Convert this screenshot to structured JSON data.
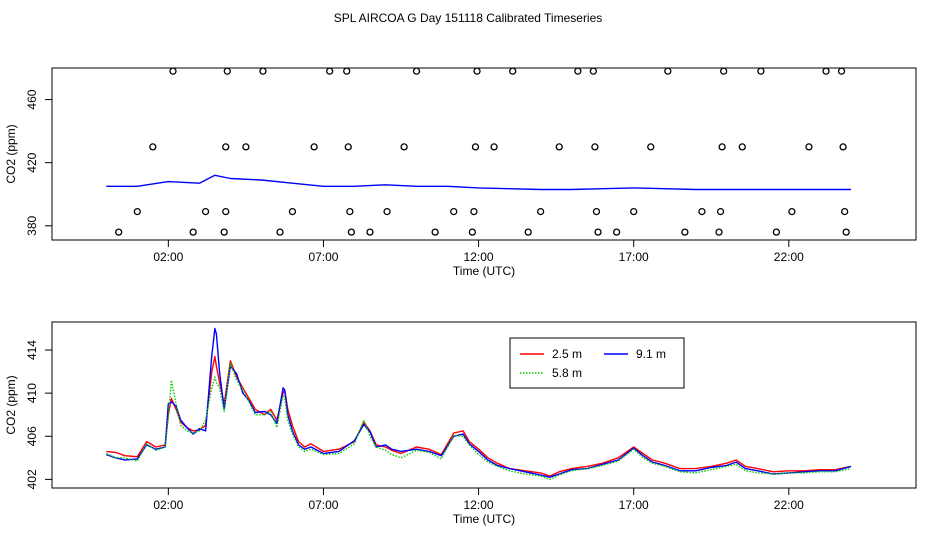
{
  "title": "SPL AIRCOA G  Day 151118  Calibrated Timeseries",
  "chart_data": [
    {
      "type": "scatter",
      "subtype": "line+points",
      "xlabel": "Time (UTC)",
      "ylabel": "CO2 (ppm)",
      "xlim": [
        -1.75,
        26.1
      ],
      "ylim": [
        371,
        480
      ],
      "x_ticks": [
        2,
        7,
        12,
        17,
        22
      ],
      "x_tick_labels": [
        "02:00",
        "07:00",
        "12:00",
        "17:00",
        "22:00"
      ],
      "y_ticks": [
        380,
        420,
        460
      ],
      "y_tick_labels": [
        "380",
        "420",
        "460"
      ],
      "points": [
        {
          "x": 0.4,
          "y": 376
        },
        {
          "x": 1.0,
          "y": 389
        },
        {
          "x": 1.5,
          "y": 430
        },
        {
          "x": 2.15,
          "y": 478
        },
        {
          "x": 2.8,
          "y": 376
        },
        {
          "x": 3.2,
          "y": 389
        },
        {
          "x": 3.8,
          "y": 376
        },
        {
          "x": 3.85,
          "y": 389
        },
        {
          "x": 3.85,
          "y": 430
        },
        {
          "x": 3.9,
          "y": 478
        },
        {
          "x": 4.5,
          "y": 430
        },
        {
          "x": 5.05,
          "y": 478
        },
        {
          "x": 5.6,
          "y": 376
        },
        {
          "x": 6.0,
          "y": 389
        },
        {
          "x": 6.7,
          "y": 430
        },
        {
          "x": 7.2,
          "y": 478
        },
        {
          "x": 7.75,
          "y": 478
        },
        {
          "x": 7.8,
          "y": 430
        },
        {
          "x": 7.85,
          "y": 389
        },
        {
          "x": 7.9,
          "y": 376
        },
        {
          "x": 8.5,
          "y": 376
        },
        {
          "x": 9.05,
          "y": 389
        },
        {
          "x": 9.6,
          "y": 430
        },
        {
          "x": 10.0,
          "y": 478
        },
        {
          "x": 10.6,
          "y": 376
        },
        {
          "x": 11.2,
          "y": 389
        },
        {
          "x": 11.8,
          "y": 376
        },
        {
          "x": 11.85,
          "y": 389
        },
        {
          "x": 11.9,
          "y": 430
        },
        {
          "x": 11.95,
          "y": 478
        },
        {
          "x": 12.5,
          "y": 430
        },
        {
          "x": 13.1,
          "y": 478
        },
        {
          "x": 13.6,
          "y": 376
        },
        {
          "x": 14.0,
          "y": 389
        },
        {
          "x": 14.6,
          "y": 430
        },
        {
          "x": 15.2,
          "y": 478
        },
        {
          "x": 15.7,
          "y": 478
        },
        {
          "x": 15.75,
          "y": 430
        },
        {
          "x": 15.8,
          "y": 389
        },
        {
          "x": 15.85,
          "y": 376
        },
        {
          "x": 16.45,
          "y": 376
        },
        {
          "x": 17.0,
          "y": 389
        },
        {
          "x": 17.55,
          "y": 430
        },
        {
          "x": 18.1,
          "y": 478
        },
        {
          "x": 18.65,
          "y": 376
        },
        {
          "x": 19.2,
          "y": 389
        },
        {
          "x": 19.75,
          "y": 376
        },
        {
          "x": 19.8,
          "y": 389
        },
        {
          "x": 19.85,
          "y": 430
        },
        {
          "x": 19.9,
          "y": 478
        },
        {
          "x": 20.5,
          "y": 430
        },
        {
          "x": 21.1,
          "y": 478
        },
        {
          "x": 21.6,
          "y": 376
        },
        {
          "x": 22.1,
          "y": 389
        },
        {
          "x": 22.65,
          "y": 430
        },
        {
          "x": 23.2,
          "y": 478
        },
        {
          "x": 23.7,
          "y": 478
        },
        {
          "x": 23.75,
          "y": 430
        },
        {
          "x": 23.8,
          "y": 389
        },
        {
          "x": 23.85,
          "y": 376
        }
      ],
      "series": [
        {
          "name": "blue trace",
          "color": "#0000ff",
          "x": [
            0,
            1,
            2,
            3,
            3.5,
            4,
            5,
            6,
            7,
            8,
            9,
            10,
            11,
            12,
            13,
            14,
            15,
            16,
            17,
            18,
            19,
            20,
            21,
            22,
            23,
            24
          ],
          "y": [
            405,
            405,
            408,
            407,
            412,
            410,
            409,
            407,
            405,
            405,
            406,
            405,
            405,
            404,
            403.5,
            403,
            403,
            403.5,
            404,
            403.5,
            403,
            403,
            403,
            403,
            403,
            403
          ]
        }
      ]
    },
    {
      "type": "line",
      "xlabel": "Time (UTC)",
      "ylabel": "CO2 (ppm)",
      "xlim": [
        -1.75,
        26.1
      ],
      "ylim": [
        401.2,
        416.6
      ],
      "x_ticks": [
        2,
        7,
        12,
        17,
        22
      ],
      "x_tick_labels": [
        "02:00",
        "07:00",
        "12:00",
        "17:00",
        "22:00"
      ],
      "y_ticks": [
        402,
        406,
        410,
        414
      ],
      "y_tick_labels": [
        "402",
        "406",
        "410",
        "414"
      ],
      "legend": {
        "position": "top-center",
        "entries": [
          "2.5 m",
          "9.1 m",
          "5.8 m"
        ]
      },
      "series": [
        {
          "name": "2.5 m",
          "color": "#ff0000",
          "style": "solid",
          "x": [
            0,
            0.3,
            0.6,
            1.0,
            1.3,
            1.6,
            1.9,
            2.0,
            2.1,
            2.25,
            2.4,
            2.6,
            2.8,
            3.0,
            3.2,
            3.4,
            3.5,
            3.55,
            3.65,
            3.8,
            4.0,
            4.2,
            4.4,
            4.6,
            4.8,
            5.1,
            5.3,
            5.5,
            5.7,
            5.75,
            5.85,
            6.0,
            6.2,
            6.4,
            6.6,
            7.0,
            7.5,
            8.0,
            8.3,
            8.5,
            8.7,
            9.0,
            9.2,
            9.5,
            10.0,
            10.4,
            10.8,
            11.2,
            11.5,
            11.7,
            12.0,
            12.3,
            12.6,
            13.0,
            13.5,
            14.0,
            14.3,
            14.6,
            15.0,
            15.5,
            16.0,
            16.5,
            17.0,
            17.3,
            17.6,
            18.0,
            18.5,
            19.0,
            19.5,
            20.0,
            20.3,
            20.6,
            21.0,
            21.5,
            22.0,
            22.5,
            23.0,
            23.5,
            24.0
          ],
          "y": [
            404.6,
            404.5,
            404.2,
            404.1,
            405.5,
            405.0,
            405.2,
            408.0,
            409.5,
            408.5,
            407.3,
            406.8,
            406.5,
            406.6,
            407.0,
            412.0,
            413.4,
            412.5,
            411.0,
            409.0,
            413.0,
            411.5,
            410.5,
            409.5,
            408.5,
            408.0,
            408.5,
            407.5,
            410.0,
            410.3,
            408.5,
            407.0,
            405.5,
            405.0,
            405.3,
            404.6,
            404.8,
            405.5,
            407.3,
            406.5,
            405.2,
            405.0,
            404.7,
            404.4,
            405.0,
            404.8,
            404.3,
            406.3,
            406.5,
            405.5,
            404.8,
            404.0,
            403.5,
            403.0,
            402.8,
            402.6,
            402.3,
            402.7,
            403.0,
            403.2,
            403.5,
            404.0,
            405.0,
            404.4,
            403.8,
            403.5,
            403.0,
            403.0,
            403.2,
            403.5,
            403.8,
            403.2,
            403.0,
            402.7,
            402.8,
            402.8,
            402.9,
            402.9,
            403.2
          ]
        },
        {
          "name": "9.1 m",
          "color": "#0000ff",
          "style": "solid",
          "x": [
            0,
            0.3,
            0.6,
            1.0,
            1.3,
            1.6,
            1.9,
            2.0,
            2.1,
            2.25,
            2.4,
            2.6,
            2.8,
            3.0,
            3.2,
            3.4,
            3.5,
            3.55,
            3.65,
            3.8,
            4.0,
            4.2,
            4.4,
            4.6,
            4.8,
            5.1,
            5.3,
            5.5,
            5.7,
            5.75,
            5.85,
            6.0,
            6.2,
            6.4,
            6.6,
            7.0,
            7.5,
            8.0,
            8.3,
            8.5,
            8.7,
            9.0,
            9.2,
            9.5,
            10.0,
            10.4,
            10.8,
            11.2,
            11.5,
            11.7,
            12.0,
            12.3,
            12.6,
            13.0,
            13.5,
            14.0,
            14.3,
            14.6,
            15.0,
            15.5,
            16.0,
            16.5,
            17.0,
            17.3,
            17.6,
            18.0,
            18.5,
            19.0,
            19.5,
            20.0,
            20.3,
            20.6,
            21.0,
            21.5,
            22.0,
            22.5,
            23.0,
            23.5,
            24.0
          ],
          "y": [
            404.3,
            404.0,
            403.8,
            403.9,
            405.2,
            404.8,
            405.0,
            409.0,
            409.2,
            408.8,
            407.5,
            406.8,
            406.2,
            406.7,
            406.5,
            413.5,
            416.0,
            415.5,
            412.0,
            408.5,
            412.5,
            411.8,
            410.0,
            409.3,
            408.2,
            408.3,
            408.0,
            407.2,
            410.5,
            410.3,
            408.0,
            406.5,
            405.2,
            404.8,
            405.0,
            404.4,
            404.6,
            405.6,
            407.1,
            406.4,
            405.0,
            405.2,
            404.8,
            404.6,
            404.8,
            404.6,
            404.2,
            406.0,
            406.2,
            405.3,
            404.6,
            403.8,
            403.3,
            403.0,
            402.7,
            402.4,
            402.2,
            402.5,
            402.9,
            403.0,
            403.4,
            403.8,
            404.9,
            404.2,
            403.6,
            403.3,
            402.8,
            402.8,
            403.1,
            403.3,
            403.6,
            403.0,
            402.8,
            402.5,
            402.6,
            402.7,
            402.8,
            402.8,
            403.2
          ]
        },
        {
          "name": "5.8 m",
          "color": "#00cc00",
          "style": "dotted",
          "x": [
            0,
            0.3,
            0.6,
            1.0,
            1.3,
            1.6,
            1.9,
            2.0,
            2.1,
            2.25,
            2.4,
            2.6,
            2.8,
            3.0,
            3.2,
            3.4,
            3.5,
            3.55,
            3.65,
            3.8,
            4.0,
            4.2,
            4.4,
            4.6,
            4.8,
            5.1,
            5.3,
            5.5,
            5.7,
            5.75,
            5.85,
            6.0,
            6.2,
            6.4,
            6.6,
            7.0,
            7.5,
            8.0,
            8.3,
            8.5,
            8.7,
            9.0,
            9.2,
            9.5,
            10.0,
            10.4,
            10.8,
            11.2,
            11.5,
            11.7,
            12.0,
            12.3,
            12.6,
            13.0,
            13.5,
            14.0,
            14.3,
            14.6,
            15.0,
            15.5,
            16.0,
            16.5,
            17.0,
            17.3,
            17.6,
            18.0,
            18.5,
            19.0,
            19.5,
            20.0,
            20.3,
            20.6,
            21.0,
            21.5,
            22.0,
            22.5,
            23.0,
            23.5,
            24.0
          ],
          "y": [
            404.4,
            404.0,
            404.0,
            403.7,
            405.3,
            404.7,
            405.0,
            407.8,
            411.2,
            409.0,
            407.0,
            406.5,
            406.3,
            406.5,
            407.5,
            410.5,
            411.5,
            411.0,
            410.5,
            408.3,
            412.8,
            411.2,
            410.3,
            409.2,
            408.0,
            408.0,
            408.3,
            406.8,
            409.8,
            409.5,
            407.5,
            406.2,
            405.0,
            404.6,
            404.8,
            404.3,
            404.4,
            405.3,
            407.5,
            406.0,
            405.0,
            404.7,
            404.3,
            404.0,
            404.7,
            404.5,
            403.9,
            406.1,
            406.0,
            405.2,
            404.3,
            403.6,
            403.2,
            402.8,
            402.5,
            402.3,
            402.0,
            402.4,
            402.8,
            403.0,
            403.3,
            403.7,
            404.8,
            404.0,
            403.5,
            403.2,
            402.7,
            402.6,
            402.9,
            403.2,
            403.4,
            402.8,
            402.6,
            402.5,
            402.6,
            402.6,
            402.7,
            402.7,
            403.0
          ]
        }
      ]
    }
  ]
}
